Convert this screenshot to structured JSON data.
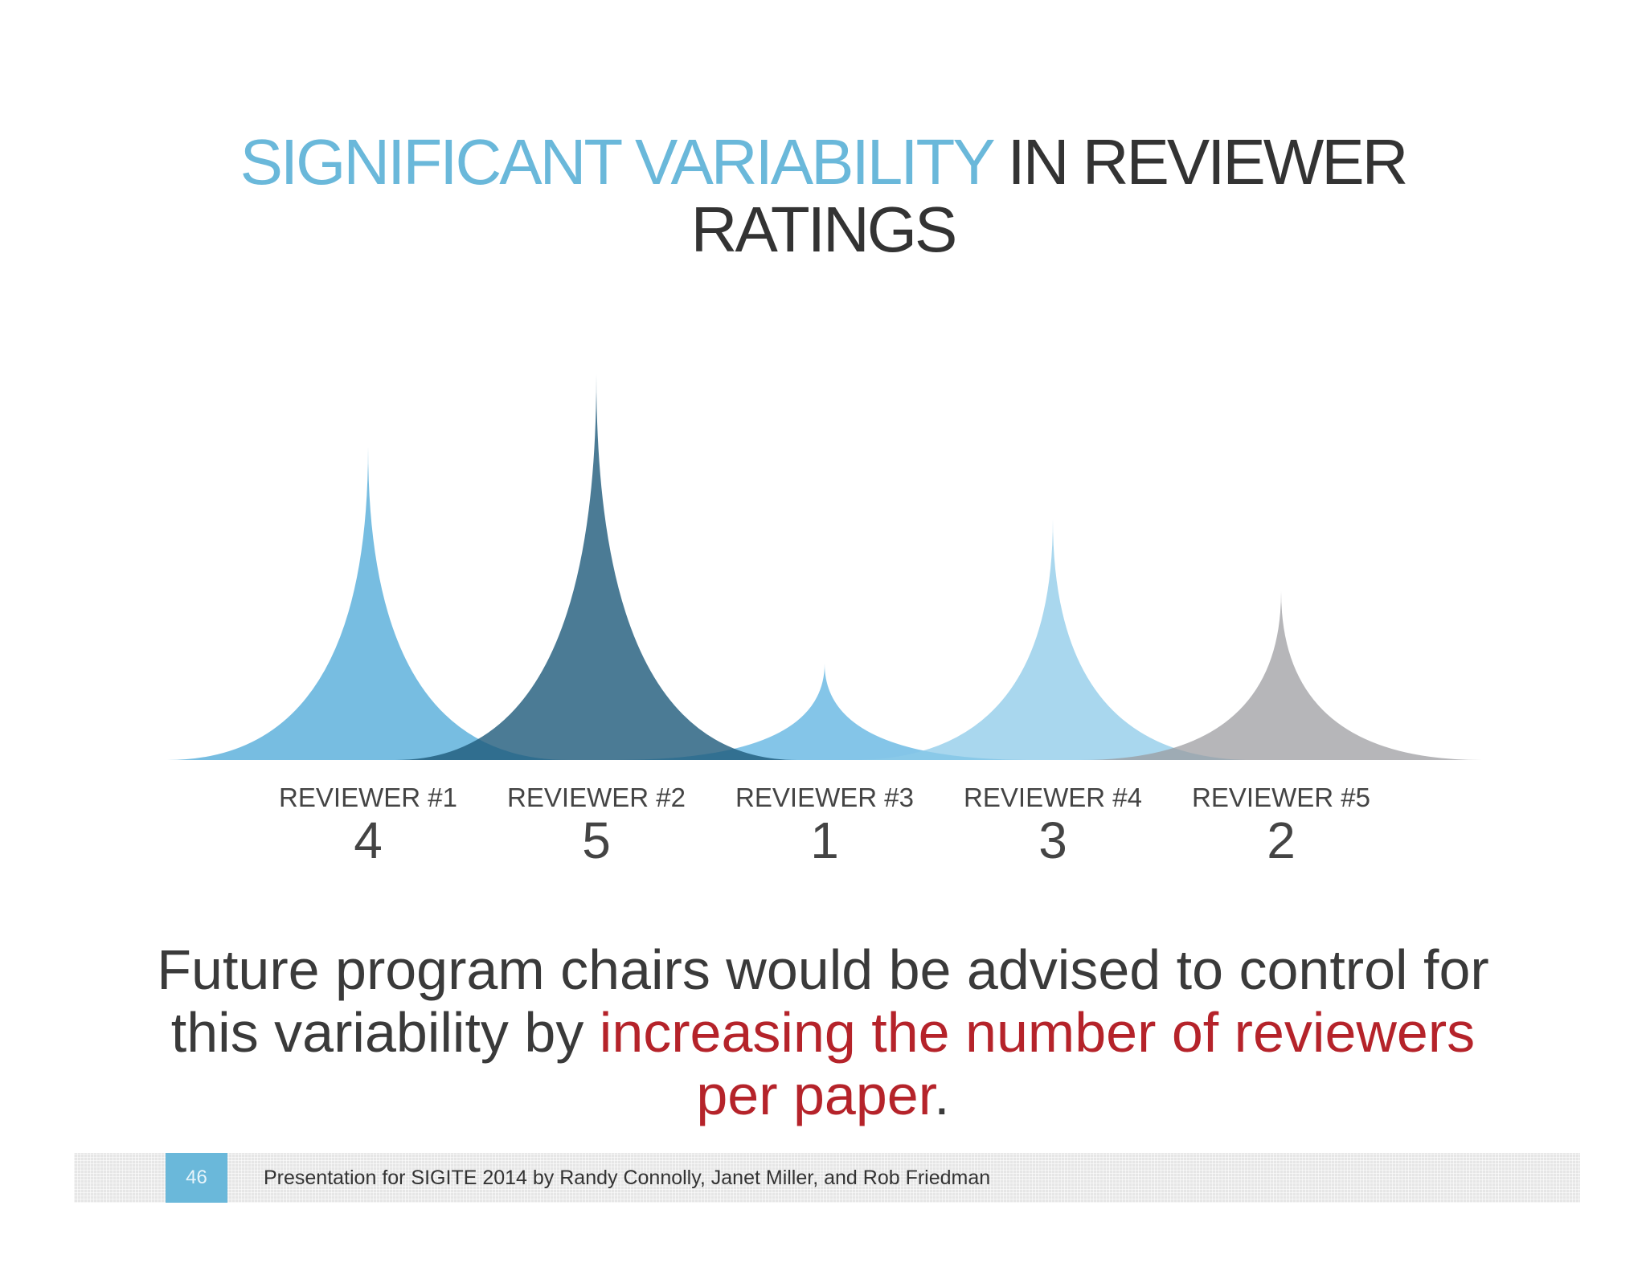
{
  "slide": {
    "title_accent": "SIGNIFICANT VARIABILITY",
    "title_rest": " IN REVIEWER",
    "title_line2": "RATINGS",
    "message_part1": "Future program chairs would be advised to control for this variability by ",
    "message_highlight": "increasing the number of reviewers per paper",
    "message_end": "."
  },
  "footer": {
    "page_number": "46",
    "text": "Presentation for SIGITE 2014 by Randy Connolly, Janet Miller, and Rob Friedman"
  },
  "colors": {
    "accent_blue": "#6ab8da",
    "highlight_red": "#b5232a"
  },
  "chart_data": {
    "type": "area",
    "ylim": [
      0,
      5
    ],
    "categories": [
      "REVIEWER #1",
      "REVIEWER #2",
      "REVIEWER #3",
      "REVIEWER #4",
      "REVIEWER #5"
    ],
    "values": [
      4,
      5,
      1,
      3,
      2
    ],
    "colors": [
      "#5fb1dc",
      "#1e5a7a",
      "#65b7e2",
      "#8cc9e8",
      "#9a9a9e"
    ],
    "grid": false,
    "legend": "none"
  }
}
